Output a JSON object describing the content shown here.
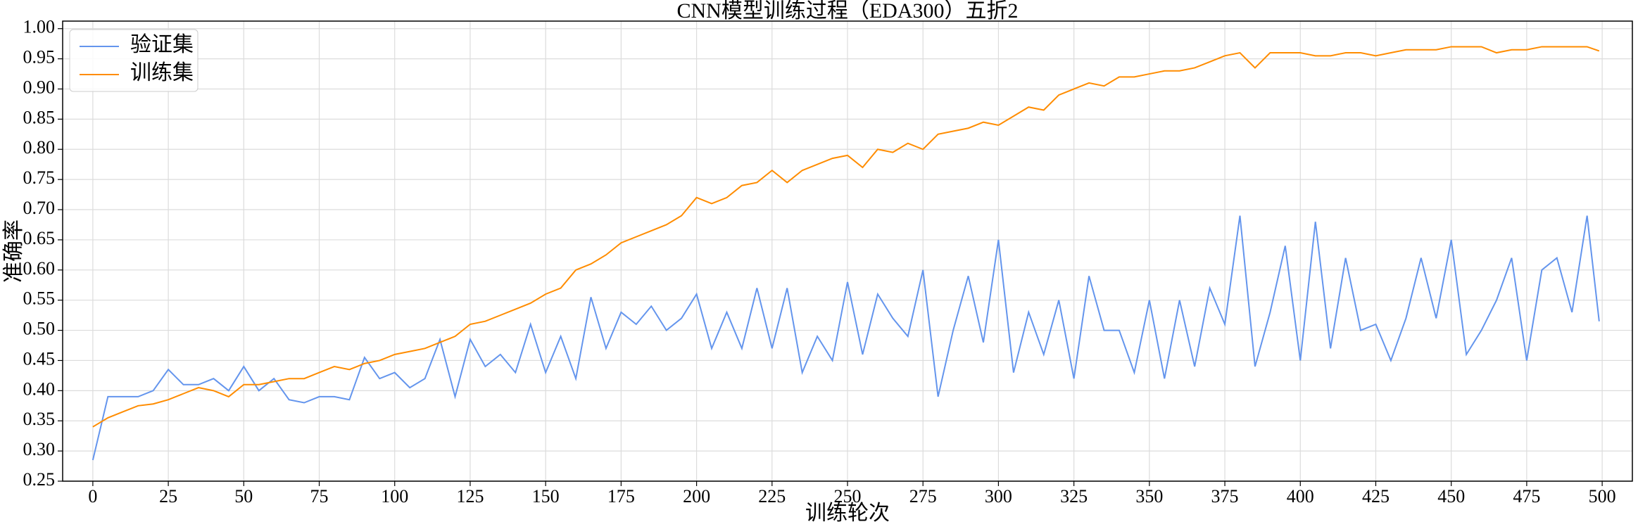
{
  "chart_data": {
    "type": "line",
    "title": "CNN模型训练过程（EDA300）五折2",
    "x_label": "训练轮次",
    "y_label": "准确率",
    "x": [
      0,
      5,
      10,
      15,
      20,
      25,
      30,
      35,
      40,
      45,
      50,
      55,
      60,
      65,
      70,
      75,
      80,
      85,
      90,
      95,
      100,
      105,
      110,
      115,
      120,
      125,
      130,
      135,
      140,
      145,
      150,
      155,
      160,
      165,
      170,
      175,
      180,
      185,
      190,
      195,
      200,
      205,
      210,
      215,
      220,
      225,
      230,
      235,
      240,
      245,
      250,
      255,
      260,
      265,
      270,
      275,
      280,
      285,
      290,
      295,
      300,
      305,
      310,
      315,
      320,
      325,
      330,
      335,
      340,
      345,
      350,
      355,
      360,
      365,
      370,
      375,
      380,
      385,
      390,
      395,
      400,
      405,
      410,
      415,
      420,
      425,
      430,
      435,
      440,
      445,
      450,
      455,
      460,
      465,
      470,
      475,
      480,
      485,
      490,
      495,
      499
    ],
    "series": [
      {
        "name": "验证集",
        "color": "#6495ed",
        "values": [
          0.285,
          0.39,
          0.39,
          0.39,
          0.4,
          0.435,
          0.41,
          0.41,
          0.42,
          0.4,
          0.44,
          0.4,
          0.42,
          0.385,
          0.38,
          0.39,
          0.39,
          0.385,
          0.455,
          0.42,
          0.43,
          0.405,
          0.42,
          0.485,
          0.39,
          0.485,
          0.44,
          0.46,
          0.43,
          0.51,
          0.43,
          0.49,
          0.42,
          0.555,
          0.47,
          0.53,
          0.51,
          0.54,
          0.5,
          0.52,
          0.56,
          0.47,
          0.53,
          0.47,
          0.57,
          0.47,
          0.57,
          0.43,
          0.49,
          0.45,
          0.58,
          0.46,
          0.56,
          0.52,
          0.49,
          0.6,
          0.39,
          0.5,
          0.59,
          0.48,
          0.65,
          0.43,
          0.53,
          0.46,
          0.55,
          0.42,
          0.59,
          0.5,
          0.5,
          0.43,
          0.55,
          0.42,
          0.55,
          0.44,
          0.57,
          0.51,
          0.69,
          0.44,
          0.53,
          0.64,
          0.45,
          0.68,
          0.47,
          0.62,
          0.5,
          0.51,
          0.45,
          0.52,
          0.62,
          0.52,
          0.65,
          0.46,
          0.5,
          0.55,
          0.62,
          0.45,
          0.6,
          0.62,
          0.53,
          0.69,
          0.515
        ]
      },
      {
        "name": "训练集",
        "color": "#ff8c00",
        "values": [
          0.34,
          0.355,
          0.365,
          0.375,
          0.378,
          0.385,
          0.395,
          0.405,
          0.4,
          0.39,
          0.41,
          0.41,
          0.415,
          0.42,
          0.42,
          0.43,
          0.44,
          0.435,
          0.445,
          0.45,
          0.46,
          0.465,
          0.47,
          0.48,
          0.49,
          0.51,
          0.515,
          0.525,
          0.535,
          0.545,
          0.56,
          0.57,
          0.6,
          0.61,
          0.625,
          0.645,
          0.655,
          0.665,
          0.675,
          0.69,
          0.72,
          0.71,
          0.72,
          0.74,
          0.745,
          0.765,
          0.745,
          0.765,
          0.775,
          0.785,
          0.79,
          0.77,
          0.8,
          0.795,
          0.81,
          0.8,
          0.825,
          0.83,
          0.835,
          0.845,
          0.84,
          0.855,
          0.87,
          0.865,
          0.89,
          0.9,
          0.91,
          0.905,
          0.92,
          0.92,
          0.925,
          0.93,
          0.93,
          0.935,
          0.945,
          0.955,
          0.96,
          0.935,
          0.96,
          0.96,
          0.96,
          0.955,
          0.955,
          0.96,
          0.96,
          0.955,
          0.96,
          0.965,
          0.965,
          0.965,
          0.97,
          0.97,
          0.97,
          0.96,
          0.965,
          0.965,
          0.97,
          0.97,
          0.97,
          0.97,
          0.963
        ]
      }
    ],
    "xlim": [
      -10,
      510
    ],
    "ylim": [
      0.25,
      1.0125
    ],
    "xticks": [
      0,
      25,
      50,
      75,
      100,
      125,
      150,
      175,
      200,
      225,
      250,
      275,
      300,
      325,
      350,
      375,
      400,
      425,
      450,
      475,
      500
    ],
    "yticks": [
      0.25,
      {
        "value": 0.3,
        "label": "0.30"
      },
      0.35,
      {
        "value": 0.4,
        "label": "0.40"
      },
      0.45,
      {
        "value": 0.5,
        "label": "0.50"
      },
      0.55,
      {
        "value": 0.6,
        "label": "0.60"
      },
      0.65,
      {
        "value": 0.7,
        "label": "0.70"
      },
      0.75,
      {
        "value": 0.8,
        "label": "0.80"
      },
      0.85,
      {
        "value": 0.9,
        "label": "0.90"
      },
      0.95,
      {
        "value": 1.0,
        "label": "1.00"
      }
    ],
    "grid": true,
    "legend": "upper-left"
  }
}
